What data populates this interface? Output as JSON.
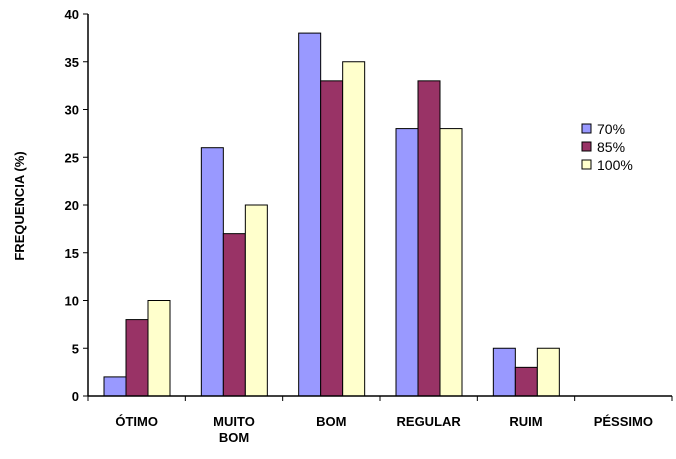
{
  "chart_data": {
    "type": "bar",
    "title": "",
    "xlabel": "",
    "ylabel": "FREQUENCIA (%)",
    "ylim": [
      0,
      40
    ],
    "yticks": [
      0,
      5,
      10,
      15,
      20,
      25,
      30,
      35,
      40
    ],
    "grid": false,
    "legend_position": "right",
    "categories": [
      [
        "ÓTIMO"
      ],
      [
        "MUITO",
        "BOM"
      ],
      [
        "BOM"
      ],
      [
        "REGULAR"
      ],
      [
        "RUIM"
      ],
      [
        "PÉSSIMO"
      ]
    ],
    "series": [
      {
        "name": "70%",
        "color": "#9999ff",
        "values": [
          2,
          26,
          38,
          28,
          5,
          0
        ]
      },
      {
        "name": "85%",
        "color": "#993366",
        "values": [
          8,
          17,
          33,
          33,
          3,
          0
        ]
      },
      {
        "name": "100%",
        "color": "#ffffcc",
        "values": [
          10,
          20,
          35,
          28,
          5,
          0
        ]
      }
    ]
  }
}
